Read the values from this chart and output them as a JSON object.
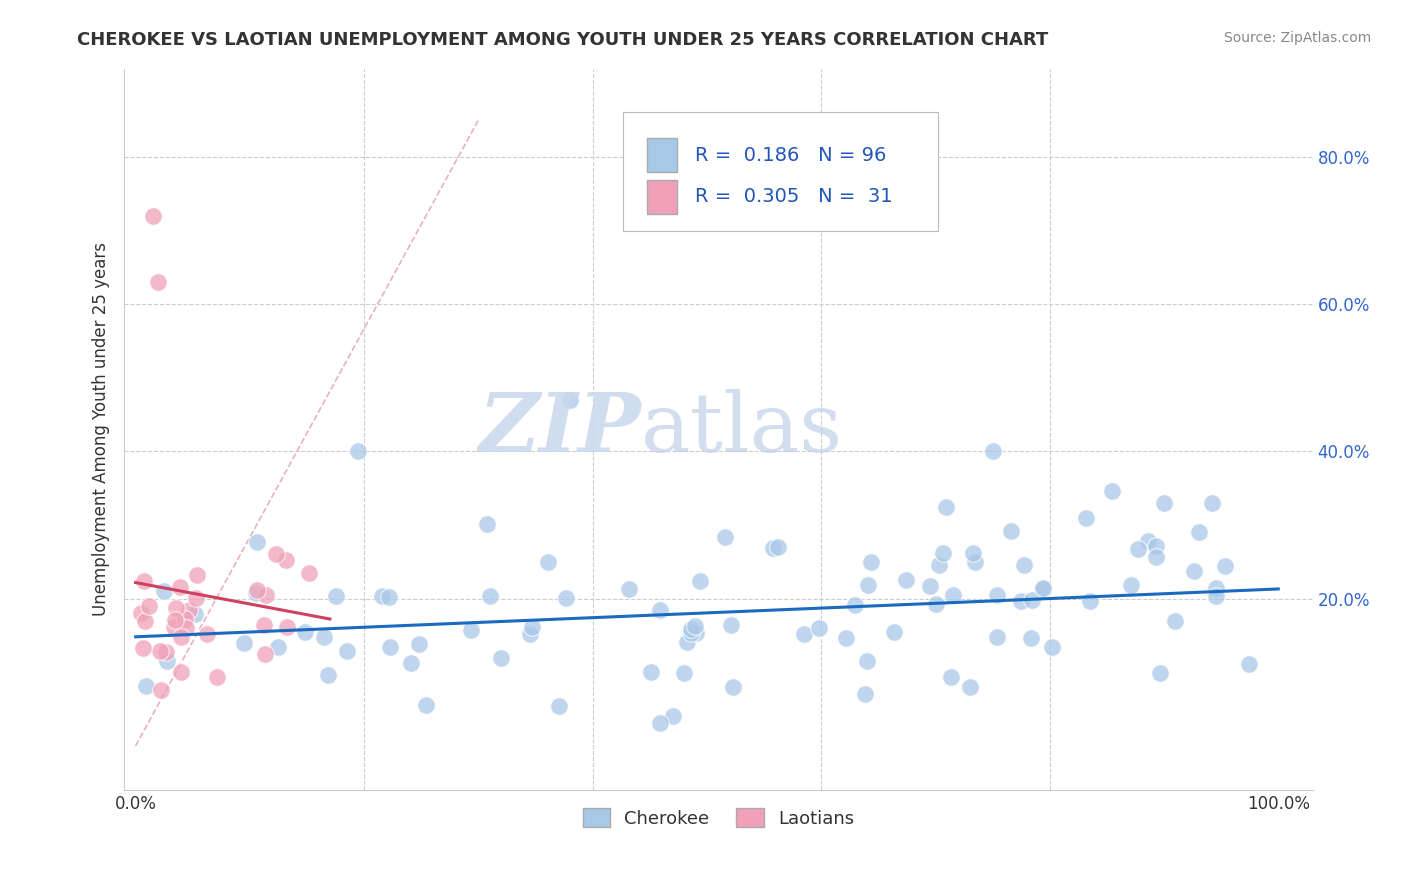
{
  "title": "CHEROKEE VS LAOTIAN UNEMPLOYMENT AMONG YOUTH UNDER 25 YEARS CORRELATION CHART",
  "source": "Source: ZipAtlas.com",
  "ylabel": "Unemployment Among Youth under 25 years",
  "cherokee_R": 0.186,
  "cherokee_N": 96,
  "laotian_R": 0.305,
  "laotian_N": 31,
  "cherokee_color": "#a8c8e8",
  "laotian_color": "#f0a0b8",
  "cherokee_line_color": "#1a6bbf",
  "laotian_line_color": "#d04060",
  "diag_line_color": "#e0b0b8",
  "grid_color": "#cccccc",
  "background_color": "#ffffff",
  "watermark_zip_color": "#d0d8e8",
  "watermark_atlas_color": "#c8d4e4",
  "legend_cherokee_label": "Cherokee",
  "legend_laotian_label": "Laotians",
  "ytick_color": "#3366cc",
  "xtick_color": "#333333"
}
